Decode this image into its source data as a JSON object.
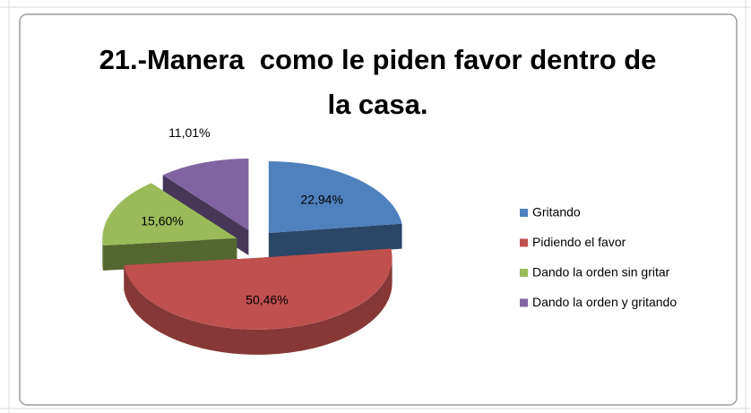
{
  "chart_data": {
    "type": "pie3d",
    "title": "21.-Manera  como le piden favor dentro de la casa.",
    "categories": [
      "Gritando",
      "Pidiendo el favor",
      "Dando la orden sin gritar",
      "Dando la orden y gritando"
    ],
    "values": [
      22.94,
      50.46,
      15.6,
      11.01
    ],
    "value_labels": [
      "22,94%",
      "50,46%",
      "15,60%",
      "11,01%"
    ],
    "colors": [
      "#4f81bd",
      "#c0504d",
      "#9bbb59",
      "#8064a2"
    ],
    "legend": "right"
  }
}
